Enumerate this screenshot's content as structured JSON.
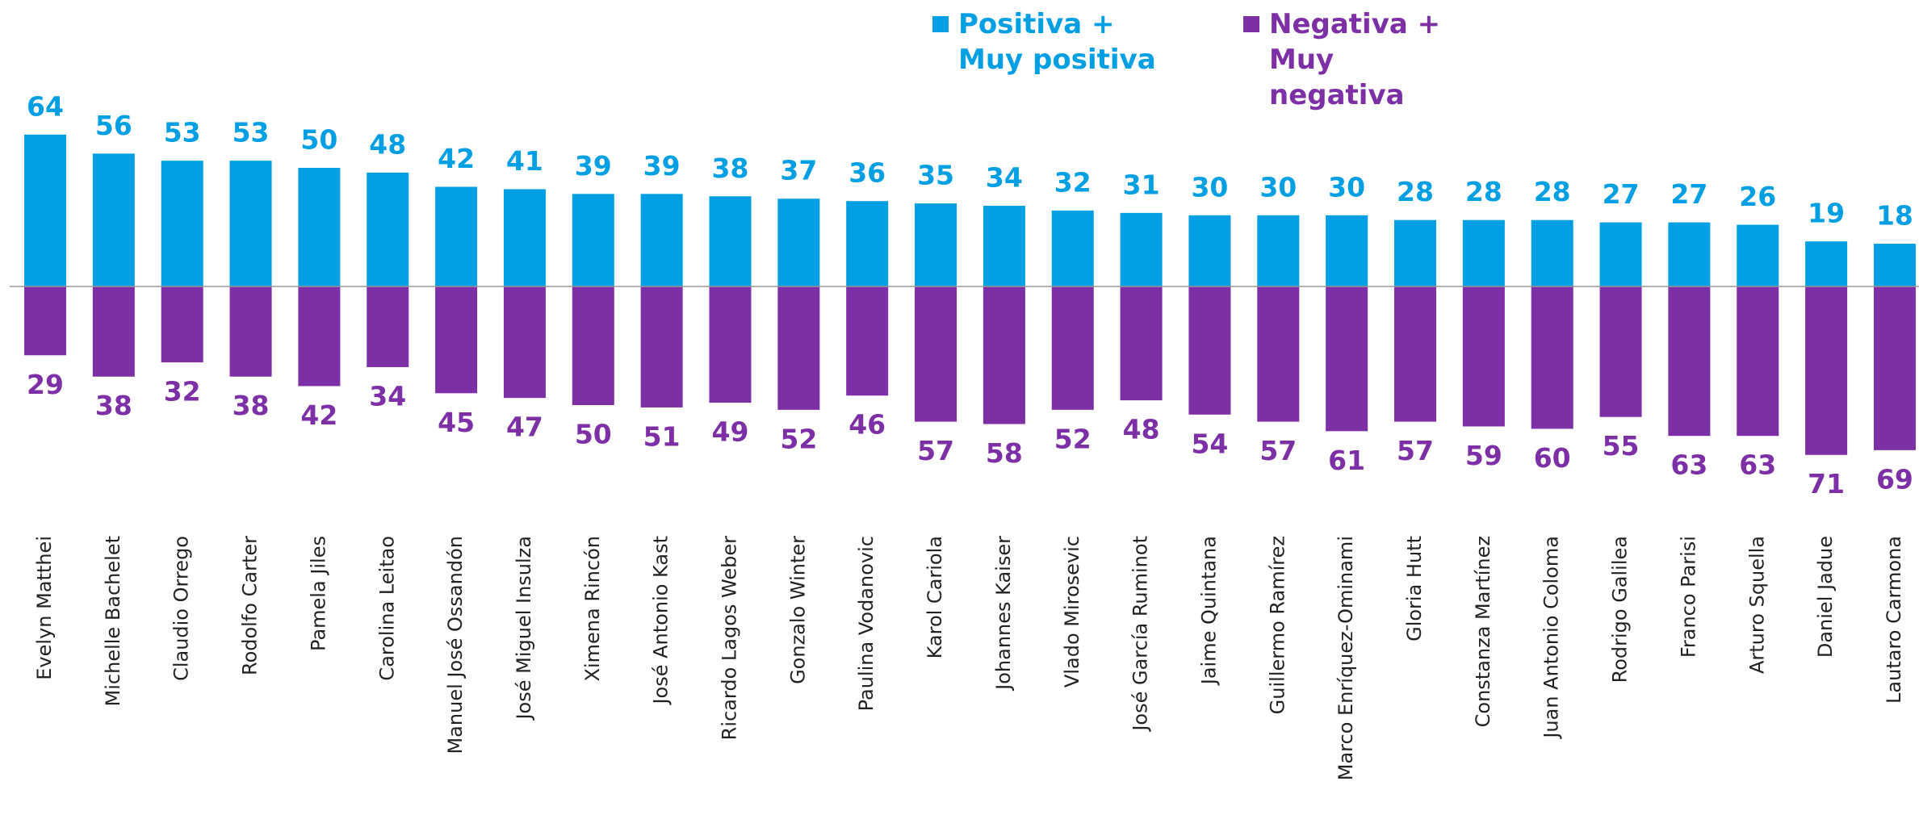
{
  "chart_data": {
    "type": "diverging_bar",
    "categories": [
      "Evelyn Matthei",
      "Michelle Bachelet",
      "Claudio Orrego",
      "Rodolfo Carter",
      "Pamela Jiles",
      "Carolina Leitao",
      "Manuel José Ossandón",
      "José Miguel Insulza",
      "Ximena Rincón",
      "José Antonio Kast",
      "Ricardo Lagos Weber",
      "Gonzalo Winter",
      "Paulina Vodanovic",
      "Karol Cariola",
      "Johannes Kaiser",
      "Vlado Mirosevic",
      "José García Ruminot",
      "Jaime Quintana",
      "Guillermo Ramírez",
      "Marco Enríquez-Ominami",
      "Gloria Hutt",
      "Constanza Martínez",
      "Juan Antonio Coloma",
      "Rodrigo Galilea",
      "Franco Parisi",
      "Arturo Squella",
      "Daniel Jadue",
      "Lautaro Carmona"
    ],
    "series": [
      {
        "name": "Positiva + Muy positiva",
        "color": "#009fe3",
        "values": [
          64,
          56,
          53,
          53,
          50,
          48,
          42,
          41,
          39,
          39,
          38,
          37,
          36,
          35,
          34,
          32,
          31,
          30,
          30,
          30,
          28,
          28,
          28,
          27,
          27,
          26,
          19,
          18
        ]
      },
      {
        "name": "Negativa + Muy negativa",
        "color": "#7d2fa6",
        "values": [
          29,
          38,
          32,
          38,
          42,
          34,
          45,
          47,
          50,
          51,
          49,
          52,
          46,
          57,
          58,
          52,
          48,
          54,
          57,
          61,
          57,
          59,
          60,
          55,
          63,
          63,
          71,
          69
        ]
      }
    ]
  }
}
